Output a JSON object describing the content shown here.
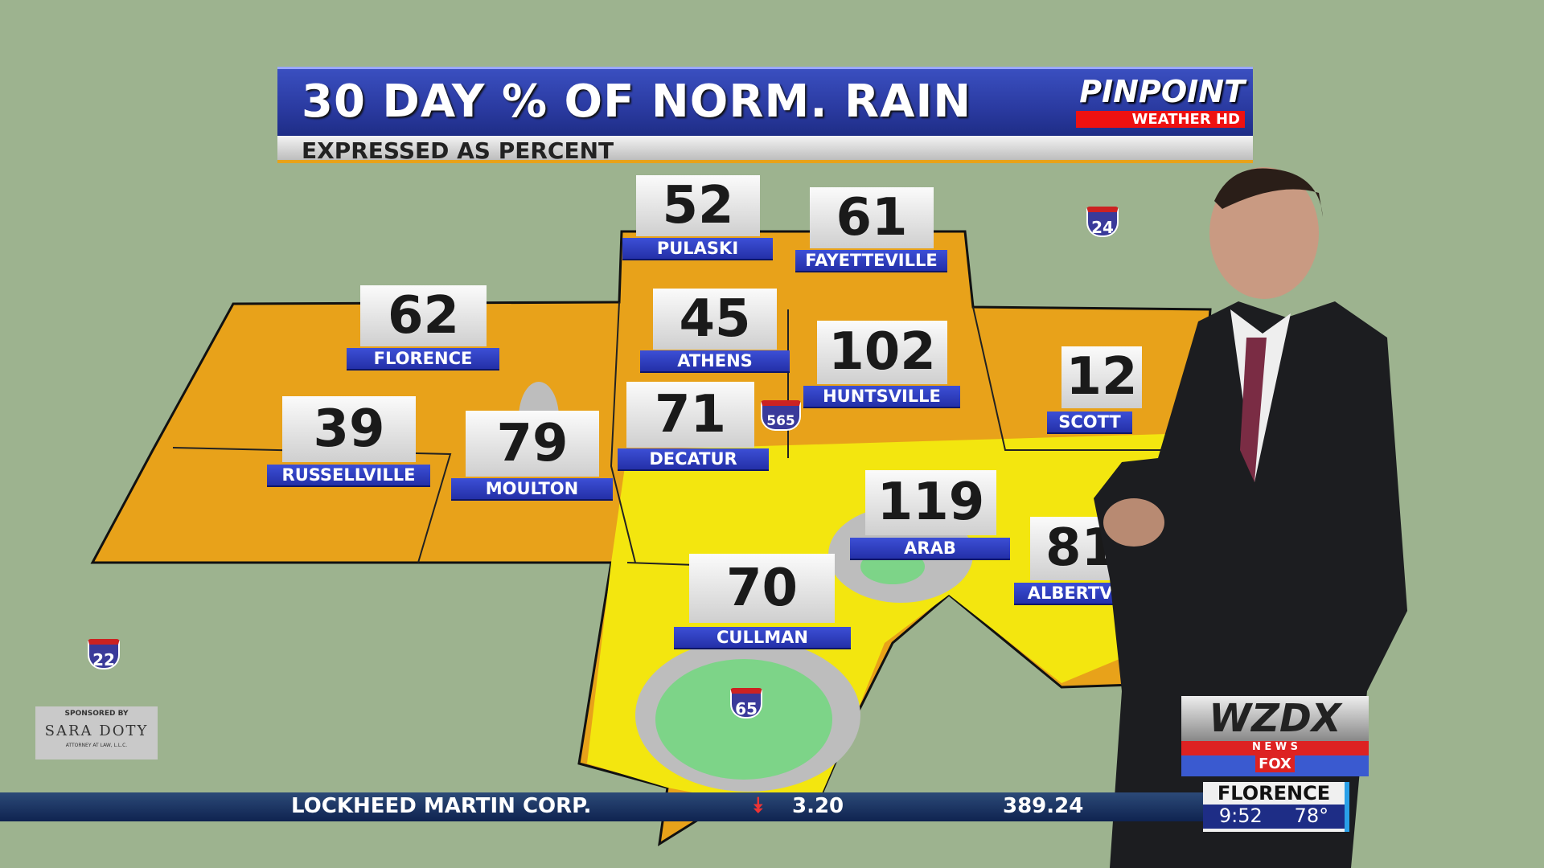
{
  "header": {
    "title": "30 DAY % OF NORM. RAIN",
    "subtitle": "EXPRESSED AS PERCENT",
    "logo_main": "PINPOINT",
    "logo_sub": "WEATHER HD"
  },
  "locations": [
    {
      "name": "PULASKI",
      "value": "52"
    },
    {
      "name": "FAYETTEVILLE",
      "value": "61"
    },
    {
      "name": "FLORENCE",
      "value": "62"
    },
    {
      "name": "ATHENS",
      "value": "45"
    },
    {
      "name": "HUNTSVILLE",
      "value": "102"
    },
    {
      "name": "SCOTT",
      "value": "12"
    },
    {
      "name": "RUSSELLVILLE",
      "value": "39"
    },
    {
      "name": "MOULTON",
      "value": "79"
    },
    {
      "name": "DECATUR",
      "value": "71"
    },
    {
      "name": "ARAB",
      "value": "119"
    },
    {
      "name": "ALBERTVI",
      "value": "81"
    },
    {
      "name": "CULLMAN",
      "value": "70"
    }
  ],
  "interstates": [
    "24",
    "22",
    "565",
    "65"
  ],
  "sponsor": {
    "top": "SPONSORED BY",
    "name": "SARA DOTY",
    "sub": "ATTORNEY AT LAW, L.L.C."
  },
  "ticker": {
    "company": "LOCKHEED MARTIN CORP.",
    "change": "3.20",
    "price": "389.24",
    "direction": "down"
  },
  "station": {
    "name": "WZDX",
    "news": "N E W S",
    "network": "FOX"
  },
  "weather_box": {
    "city": "FLORENCE",
    "time": "9:52",
    "temp": "78°"
  },
  "colors": {
    "map_bg": "#9db38f",
    "orange": "#e8a21a",
    "yellow": "#f3e60f",
    "green": "#7dd488",
    "banner": "#2a3aa0"
  }
}
